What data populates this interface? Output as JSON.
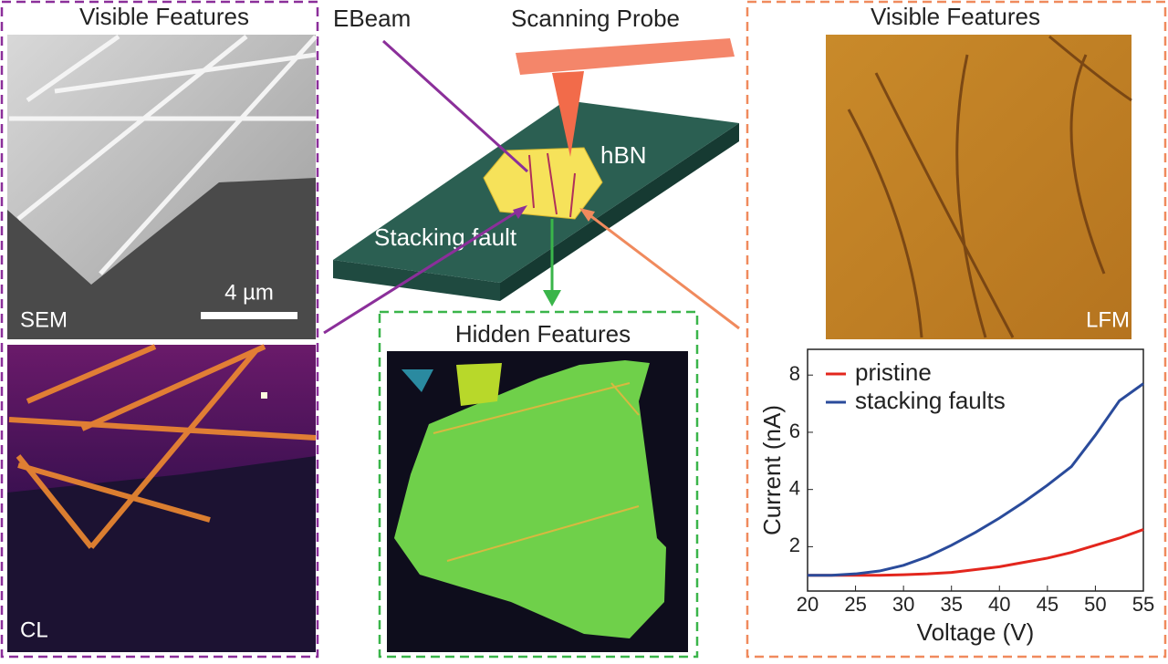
{
  "left": {
    "title": "Visible Features",
    "sem_label": "SEM",
    "scale_label": "4 µm",
    "cl_label": "CL"
  },
  "center": {
    "ebeam": "EBeam",
    "probe": "Scanning Probe",
    "hbn": "hBN",
    "fault": "Stacking fault",
    "hidden_title": "Hidden Features"
  },
  "right": {
    "title": "Visible Features",
    "lfm_label": "LFM"
  },
  "chart_data": {
    "type": "line",
    "xlabel": "Voltage (V)",
    "ylabel": "Current (nA)",
    "x": [
      20,
      22.5,
      25,
      27.5,
      30,
      32.5,
      35,
      37.5,
      40,
      42.5,
      45,
      47.5,
      50,
      52.5,
      55
    ],
    "series": [
      {
        "name": "pristine",
        "color": "#e3261d",
        "values": [
          1.0,
          1.0,
          1.0,
          1.0,
          1.02,
          1.05,
          1.1,
          1.2,
          1.3,
          1.45,
          1.6,
          1.8,
          2.05,
          2.3,
          2.6
        ]
      },
      {
        "name": "stacking faults",
        "color": "#2a4b9b",
        "values": [
          1.0,
          1.0,
          1.05,
          1.15,
          1.35,
          1.65,
          2.05,
          2.5,
          3.0,
          3.55,
          4.15,
          4.8,
          5.9,
          7.1,
          7.7
        ]
      }
    ],
    "xlim": [
      20,
      55
    ],
    "ylim": [
      0.45,
      8.9
    ],
    "xticks": [
      20,
      25,
      30,
      35,
      40,
      45,
      50,
      55
    ],
    "yticks": [
      2,
      4,
      6,
      8
    ],
    "legend": "upper left"
  }
}
